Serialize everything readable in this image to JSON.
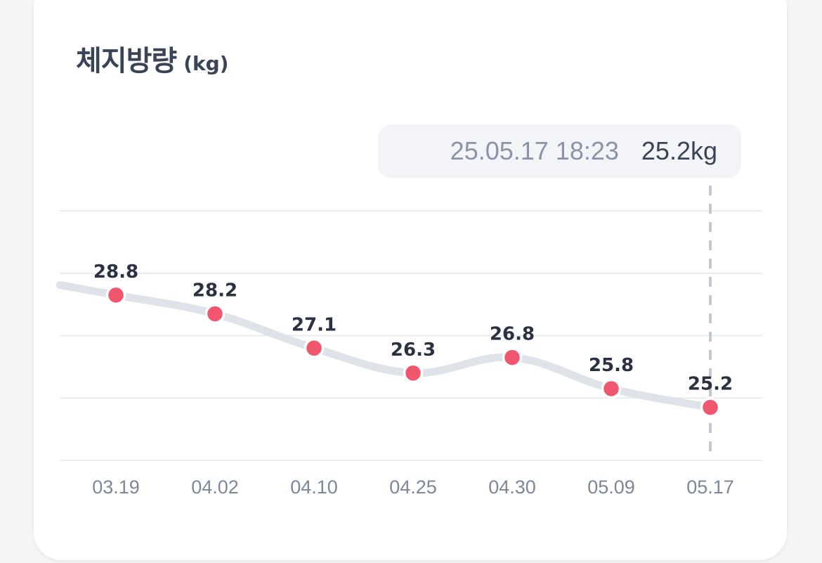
{
  "card": {
    "title": "체지방량",
    "unit": "(kg)"
  },
  "tooltip": {
    "datetime": "25.05.17 18:23",
    "value": "25.2kg"
  },
  "chart_data": {
    "type": "line",
    "title": "체지방량",
    "ylabel": "(kg)",
    "categories": [
      "03.19",
      "04.02",
      "04.10",
      "04.25",
      "04.30",
      "05.09",
      "05.17"
    ],
    "values": [
      28.8,
      28.2,
      27.1,
      26.3,
      26.8,
      25.8,
      25.2
    ],
    "value_labels": [
      "28.8",
      "28.2",
      "27.1",
      "26.3",
      "26.8",
      "25.8",
      "25.2"
    ],
    "ylim": [
      23.5,
      31.5
    ],
    "grid": true,
    "selected_index": 6,
    "colors": {
      "line": "#dfe2e8",
      "point": "#f0566e",
      "grid": "#e9ebef",
      "crosshair": "#c4c8d0"
    }
  }
}
